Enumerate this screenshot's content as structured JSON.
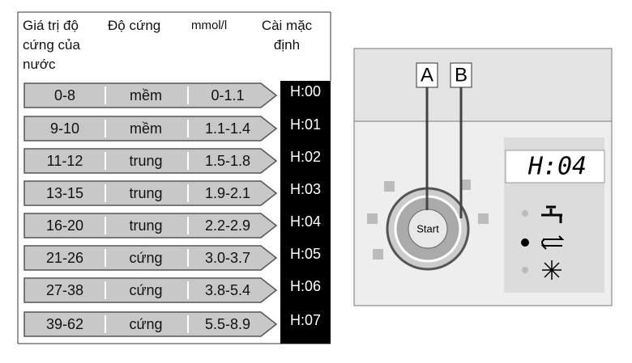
{
  "table": {
    "headers": [
      "Giá trị độ cứng của nước",
      "Độ cứng",
      "mmol/l",
      "Cài mặc định"
    ],
    "rows": [
      [
        "0-8",
        "mềm",
        "0-1.1",
        "H:00"
      ],
      [
        "9-10",
        "mềm",
        "1.1-1.4",
        "H:01"
      ],
      [
        "11-12",
        "trung",
        "1.5-1.8",
        "H:02"
      ],
      [
        "13-15",
        "trung",
        "1.9-2.1",
        "H:03"
      ],
      [
        "16-20",
        "trung",
        "2.2-2.9",
        "H:04"
      ],
      [
        "21-26",
        "cứng",
        "3.0-3.7",
        "H:05"
      ],
      [
        "27-38",
        "cứng",
        "3.8-5.4",
        "H:06"
      ],
      [
        "39-62",
        "cứng",
        "5.5-8.9",
        "H:07"
      ]
    ]
  },
  "panel": {
    "labels": [
      "A",
      "B"
    ],
    "display": "H:04",
    "button": "Start"
  }
}
